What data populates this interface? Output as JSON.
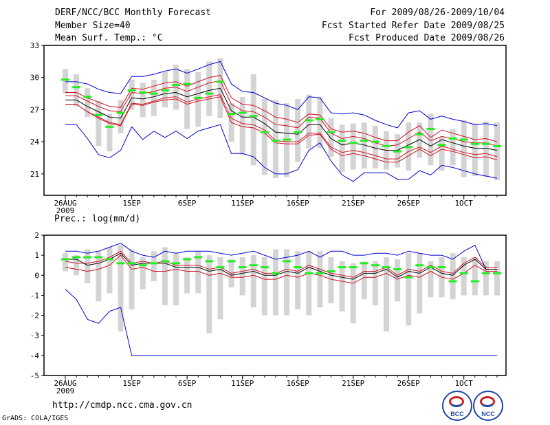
{
  "header": {
    "left": [
      "DERF/NCC/BCC Monthly Forecast",
      "Member Size=40",
      "Mean Surf. Temp.: °C"
    ],
    "right": [
      "For 2009/08/26-2009/10/04",
      "Fcst Started Refer Date 2009/08/25",
      "Fcst Produced Date 2009/08/26"
    ]
  },
  "footer": {
    "url": "http://cmdp.ncc.cma.gov.cn",
    "grads": "GrADS: COLA/IGES"
  },
  "logos": {
    "left": "BCC",
    "right": "NCC"
  },
  "colors": {
    "envelope": "#0000d8",
    "spread": "#d01020",
    "mean": "#000000",
    "box": "#d4d4d4",
    "marker": "#22ee22"
  },
  "chart_data": [
    {
      "type": "box-line",
      "title": "Mean Surf. Temp.: °C",
      "ylim": [
        19,
        33
      ],
      "yticks": [
        21,
        24,
        27,
        30,
        33
      ],
      "xlabels": [
        "26AUG",
        "1SEP",
        "6SEP",
        "11SEP",
        "16SEP",
        "21SEP",
        "26SEP",
        "1OCT"
      ],
      "xlabel_days": [
        0,
        6,
        11,
        16,
        21,
        26,
        31,
        36
      ],
      "year_label": "2009",
      "days": 40,
      "max": [
        29.6,
        29.6,
        29.4,
        28.9,
        28.6,
        28.5,
        30.1,
        30.1,
        30.3,
        30.6,
        30.8,
        30.4,
        30.8,
        31.2,
        31.5,
        29.4,
        28.7,
        28.6,
        28.1,
        27.6,
        27.4,
        27.0,
        28.2,
        28.1,
        26.7,
        26.6,
        26.7,
        26.5,
        26.0,
        25.6,
        25.3,
        26.7,
        26.9,
        26.1,
        26.4,
        26.1,
        25.9,
        25.6,
        25.7,
        25.5
      ],
      "upper": [
        28.6,
        28.6,
        28.1,
        27.7,
        27.3,
        27.2,
        29.0,
        28.9,
        29.2,
        29.5,
        29.6,
        29.2,
        29.6,
        30.0,
        30.2,
        28.1,
        27.5,
        27.4,
        26.9,
        26.3,
        26.1,
        25.8,
        26.6,
        26.5,
        25.2,
        24.9,
        25.0,
        24.8,
        24.4,
        24.1,
        24.1,
        24.9,
        25.5,
        24.4,
        25.1,
        24.8,
        24.5,
        24.2,
        24.3,
        24.0
      ],
      "p75": [
        28.3,
        28.3,
        27.8,
        27.3,
        26.9,
        26.8,
        28.6,
        28.5,
        28.7,
        29.0,
        29.1,
        28.7,
        29.1,
        29.5,
        29.7,
        27.5,
        26.9,
        26.8,
        26.3,
        25.6,
        25.5,
        25.3,
        26.3,
        26.2,
        24.8,
        24.3,
        24.5,
        24.3,
        23.9,
        23.6,
        23.7,
        24.3,
        24.9,
        24.1,
        24.5,
        24.3,
        24.0,
        23.9,
        23.9,
        23.6
      ],
      "mean": [
        27.9,
        27.9,
        27.3,
        26.8,
        26.3,
        26.2,
        28.1,
        28.0,
        28.2,
        28.5,
        28.6,
        28.2,
        28.5,
        28.8,
        29.0,
        26.9,
        26.3,
        26.3,
        25.7,
        24.9,
        24.8,
        24.7,
        25.6,
        25.6,
        24.3,
        23.7,
        23.9,
        23.7,
        23.4,
        23.2,
        23.2,
        23.7,
        24.2,
        23.6,
        24.2,
        23.9,
        23.6,
        23.4,
        23.4,
        23.2
      ],
      "p25": [
        27.5,
        27.5,
        26.8,
        26.3,
        25.8,
        25.6,
        27.6,
        27.5,
        27.8,
        28.1,
        28.2,
        27.7,
        28.0,
        28.2,
        28.4,
        26.2,
        25.7,
        25.6,
        25.1,
        24.1,
        24.0,
        24.0,
        24.8,
        24.8,
        23.5,
        23.0,
        23.2,
        23.0,
        22.7,
        22.4,
        22.4,
        23.1,
        23.5,
        23.0,
        23.6,
        23.3,
        23.0,
        22.8,
        22.9,
        22.6
      ],
      "lower": [
        27.5,
        27.5,
        26.8,
        26.2,
        25.7,
        25.5,
        27.5,
        27.4,
        27.7,
        27.9,
        28.0,
        27.5,
        27.8,
        28.0,
        28.2,
        25.8,
        25.4,
        25.3,
        24.8,
        23.9,
        23.8,
        23.8,
        24.6,
        24.7,
        23.3,
        22.7,
        22.9,
        22.7,
        22.4,
        22.1,
        22.1,
        22.7,
        23.3,
        22.7,
        23.3,
        23.1,
        22.8,
        22.5,
        22.6,
        22.3
      ],
      "min": [
        25.6,
        25.6,
        24.3,
        22.8,
        22.5,
        23.2,
        25.4,
        24.2,
        25.0,
        24.4,
        25.0,
        24.3,
        25.0,
        25.3,
        25.6,
        22.9,
        22.9,
        22.6,
        21.6,
        21.0,
        21.0,
        21.4,
        23.2,
        23.9,
        22.2,
        20.9,
        20.3,
        21.1,
        21.1,
        21.1,
        20.5,
        20.5,
        21.3,
        20.9,
        21.8,
        21.6,
        21.3,
        21.0,
        20.8,
        20.6
      ],
      "green": [
        29.8,
        29.1,
        28.2,
        26.5,
        25.4,
        26.7,
        28.8,
        28.6,
        28.5,
        28.8,
        29.3,
        29.4,
        28.1,
        28.5,
        29.6,
        26.6,
        26.7,
        26.4,
        24.9,
        24.1,
        24.2,
        24.9,
        26.0,
        26.1,
        24.9,
        24.1,
        23.9,
        24.1,
        24.0,
        23.6,
        23.1,
        23.5,
        24.7,
        25.2,
        23.7,
        24.3,
        24.2,
        23.8,
        23.8,
        23.6
      ],
      "box_hi": [
        30.8,
        30.3,
        29.0,
        27.8,
        26.6,
        27.9,
        29.8,
        29.5,
        29.8,
        30.5,
        31.2,
        30.8,
        30.5,
        31.5,
        31.8,
        27.6,
        28.2,
        30.3,
        28.0,
        27.9,
        27.6,
        28.0,
        28.4,
        28.2,
        26.2,
        25.6,
        25.7,
        25.8,
        25.5,
        25.0,
        24.7,
        25.8,
        25.8,
        26.6,
        24.4,
        25.2,
        26.0,
        25.7,
        25.9,
        25.8
      ],
      "box_lo": [
        28.5,
        27.3,
        26.3,
        23.6,
        23.1,
        24.8,
        27.0,
        26.3,
        26.4,
        27.2,
        27.0,
        25.2,
        25.4,
        26.4,
        26.2,
        24.0,
        22.8,
        21.8,
        20.9,
        20.6,
        20.7,
        22.1,
        23.4,
        23.4,
        22.6,
        21.2,
        21.4,
        21.5,
        21.5,
        21.4,
        21.6,
        21.3,
        22.5,
        21.8,
        21.3,
        21.8,
        20.7,
        20.8,
        20.7,
        20.4
      ]
    },
    {
      "type": "box-line",
      "title": "Prec.: log(mm/d)",
      "ylim": [
        -5,
        2
      ],
      "yticks": [
        -5,
        -4,
        -3,
        -2,
        -1,
        0,
        1,
        2
      ],
      "xlabels": [
        "26AUG",
        "1SEP",
        "6SEP",
        "11SEP",
        "16SEP",
        "21SEP",
        "26SEP",
        "1OCT"
      ],
      "xlabel_days": [
        0,
        6,
        11,
        16,
        21,
        26,
        31,
        36
      ],
      "year_label": "2009",
      "days": 40,
      "max": [
        1.2,
        1.2,
        1.1,
        1.2,
        1.4,
        1.6,
        1.2,
        1.0,
        0.9,
        1.2,
        1.1,
        1.2,
        1.2,
        1.2,
        1.1,
        1.0,
        1.1,
        1.2,
        1.0,
        0.8,
        0.9,
        1.0,
        1.2,
        0.9,
        1.2,
        1.2,
        1.0,
        1.0,
        1.1,
        1.1,
        1.0,
        1.2,
        1.1,
        1.0,
        1.0,
        0.8,
        1.2,
        1.5,
        0.3,
        0.3
      ],
      "upper": [
        0.7,
        0.6,
        0.6,
        0.7,
        0.9,
        1.2,
        0.6,
        0.7,
        0.6,
        0.7,
        0.5,
        0.5,
        0.5,
        0.3,
        0.4,
        0.1,
        0.2,
        0.3,
        0.1,
        0.1,
        0.3,
        0.2,
        0.5,
        0.3,
        0.1,
        0.0,
        -0.1,
        0.2,
        0.2,
        0.4,
        0.0,
        0.3,
        0.2,
        0.5,
        0.2,
        0.1,
        0.6,
        0.9,
        0.4,
        0.4
      ],
      "mean": [
        0.8,
        0.8,
        0.5,
        0.6,
        0.8,
        1.1,
        0.5,
        0.6,
        0.6,
        0.6,
        0.4,
        0.4,
        0.4,
        0.2,
        0.3,
        0.0,
        0.1,
        0.2,
        0.0,
        0.0,
        0.2,
        0.1,
        0.4,
        0.2,
        0.0,
        -0.1,
        -0.2,
        0.1,
        0.1,
        0.3,
        -0.1,
        0.2,
        0.1,
        0.4,
        0.1,
        0.0,
        0.5,
        0.8,
        0.3,
        0.3
      ],
      "lower": [
        0.4,
        0.3,
        0.2,
        0.3,
        0.5,
        1.0,
        0.3,
        0.4,
        0.2,
        0.2,
        0.3,
        0.2,
        0.2,
        0.0,
        0.1,
        -0.1,
        -0.1,
        0.0,
        -0.2,
        -0.2,
        0.0,
        -0.1,
        0.1,
        0.0,
        -0.2,
        -0.3,
        -0.4,
        -0.1,
        -0.1,
        0.1,
        -0.2,
        0.0,
        -0.1,
        0.2,
        -0.1,
        -0.2,
        0.1,
        0.5,
        0.2,
        0.2
      ],
      "min": [
        -0.7,
        -1.2,
        -2.2,
        -2.4,
        -1.8,
        -1.6,
        -4.0,
        -4.0,
        -4.0,
        -4.0,
        -4.0,
        -4.0,
        -4.0,
        -4.0,
        -4.0,
        -4.0,
        -4.0,
        -4.0,
        -4.0,
        -4.0,
        -4.0,
        -4.0,
        -4.0,
        -4.0,
        -4.0,
        -4.0,
        -4.0,
        -4.0,
        -4.0,
        -4.0,
        -4.0,
        -4.0,
        -4.0,
        -4.0,
        -4.0,
        -4.0,
        -4.0,
        -4.0,
        -4.0,
        -4.0
      ],
      "green": [
        0.8,
        0.9,
        0.9,
        0.9,
        0.8,
        0.6,
        0.6,
        0.5,
        0.6,
        0.7,
        0.6,
        0.8,
        0.9,
        0.7,
        0.4,
        0.7,
        0.4,
        0.5,
        0.4,
        0.1,
        0.7,
        0.4,
        0.1,
        0.1,
        0.2,
        0.4,
        0.4,
        0.6,
        0.5,
        0.4,
        0.3,
        -0.1,
        0.5,
        0.4,
        0.4,
        -0.3,
        0.1,
        -0.3,
        0.1,
        0.1
      ],
      "box_hi": [
        1.1,
        1.0,
        1.3,
        1.2,
        1.4,
        1.5,
        1.3,
        0.9,
        1.2,
        1.4,
        1.1,
        0.9,
        1.2,
        1.0,
        0.9,
        0.8,
        0.9,
        1.0,
        0.9,
        1.3,
        1.3,
        1.2,
        1.2,
        1.2,
        0.9,
        0.7,
        0.6,
        0.7,
        0.7,
        0.9,
        0.8,
        1.1,
        1.1,
        0.7,
        0.9,
        1.1,
        0.9,
        0.9,
        0.7,
        0.7
      ],
      "box_lo": [
        0.2,
        0.0,
        -0.4,
        -1.3,
        -0.9,
        -2.8,
        -1.7,
        -0.7,
        -0.3,
        -1.5,
        -1.5,
        -0.9,
        -0.9,
        -2.9,
        -2.2,
        -0.6,
        -1.0,
        -1.6,
        -2.0,
        -2.0,
        -2.0,
        -1.7,
        -2.0,
        -1.6,
        -1.4,
        -1.8,
        -2.4,
        -1.2,
        -1.5,
        -2.8,
        -1.3,
        -2.5,
        -1.9,
        -1.1,
        -1.1,
        -1.2,
        -1.0,
        -1.0,
        -1.0,
        -1.0
      ]
    }
  ]
}
